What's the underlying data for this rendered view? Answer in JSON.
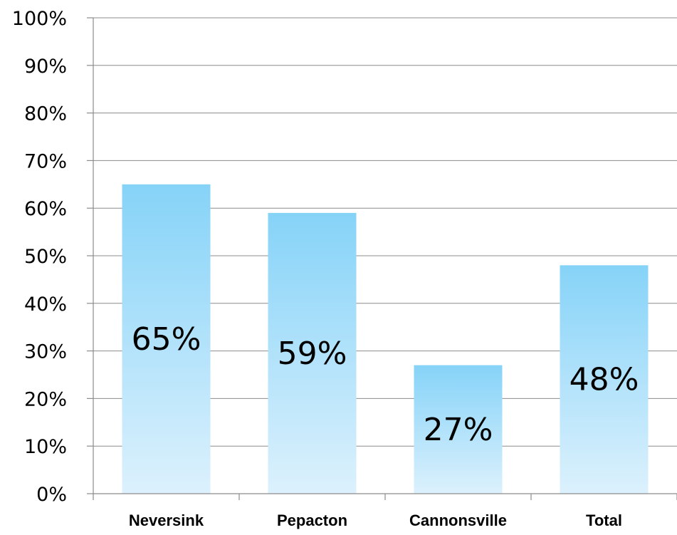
{
  "chart_data": {
    "type": "bar",
    "categories": [
      "Neversink",
      "Pepacton",
      "Cannonsville",
      "Total"
    ],
    "values": [
      65,
      59,
      27,
      48
    ],
    "data_labels": [
      "65%",
      "59%",
      "27%",
      "48%"
    ],
    "ylim": [
      0,
      100
    ],
    "yticks": [
      0,
      10,
      20,
      30,
      40,
      50,
      60,
      70,
      80,
      90,
      100
    ],
    "ytick_labels": [
      "0%",
      "10%",
      "20%",
      "30%",
      "40%",
      "50%",
      "60%",
      "70%",
      "80%",
      "90%",
      "100%"
    ],
    "grid": true,
    "legend": "none",
    "colors": {
      "bar_top": "#86d3f8",
      "bar_bottom": "#dcf1fd",
      "grid": "#8c8c8c"
    }
  }
}
